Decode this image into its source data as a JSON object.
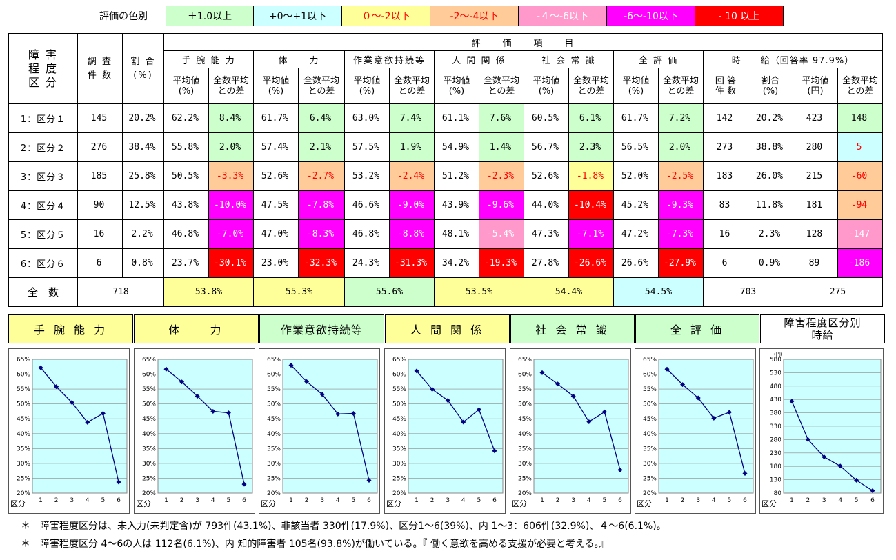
{
  "legend": {
    "title": "評価の色別",
    "items": [
      {
        "label": "＋1.0以上",
        "bg": "#ccffcc",
        "fg": "#000000"
      },
      {
        "label": "+0〜+1以下",
        "bg": "#ccffff",
        "fg": "#000000"
      },
      {
        "label": "０〜-2以下",
        "bg": "#ffff99",
        "fg": "#ff0000"
      },
      {
        "label": "-2〜-4以下",
        "bg": "#ffcc99",
        "fg": "#ff0000"
      },
      {
        "label": "-４〜-6以下",
        "bg": "#ff99cc",
        "fg": "#ffffff"
      },
      {
        "label": "-6〜-10以下",
        "bg": "#ff00ff",
        "fg": "#ffffff"
      },
      {
        "label": "- 10 以上",
        "bg": "#ff0000",
        "fg": "#ffffff"
      }
    ]
  },
  "colors": {
    "green": "#ccffcc",
    "cyan": "#ccffff",
    "yellow": "#ffff99",
    "orange": "#ffcc99",
    "pink": "#ff99cc",
    "magenta": "#ff00ff",
    "red": "#ff0000",
    "panel_bg": "#ccffff",
    "line": "#000080"
  },
  "table": {
    "corner": "障 害\n程 度\n区 分",
    "survey_count": "調 査\n件 数",
    "ratio": "割 合\n(%)",
    "eval_header": "評　　価　　項　　目",
    "items": [
      "手 腕 能 力",
      "体　　力",
      "作業意欲持続等",
      "人 間 関 係",
      "社 会 常 識",
      "全 評 価"
    ],
    "wage_header": "時　　給（回答率 97.9%）",
    "sub_avg": "平均値\n(%)",
    "sub_diff": "全数平均\nとの差",
    "wage_subs": [
      "回 答\n件 数",
      "割合\n(%)",
      "平均値\n(円)",
      "全数平均\nとの差"
    ],
    "rows": [
      {
        "label": "1：区分１",
        "count": "145",
        "ratio": "20.2%",
        "cells": [
          [
            "62.2%",
            "8.4%",
            "green"
          ],
          [
            "61.7%",
            "6.4%",
            "green"
          ],
          [
            "63.0%",
            "7.4%",
            "green"
          ],
          [
            "61.1%",
            "7.6%",
            "green"
          ],
          [
            "60.5%",
            "6.1%",
            "green"
          ],
          [
            "61.7%",
            "7.2%",
            "green"
          ]
        ],
        "wage": [
          "142",
          "20.2%",
          "423",
          "148",
          "green"
        ]
      },
      {
        "label": "2：区分２",
        "count": "276",
        "ratio": "38.4%",
        "cells": [
          [
            "55.8%",
            "2.0%",
            "green"
          ],
          [
            "57.4%",
            "2.1%",
            "green"
          ],
          [
            "57.5%",
            "1.9%",
            "green"
          ],
          [
            "54.9%",
            "1.4%",
            "green"
          ],
          [
            "56.7%",
            "2.3%",
            "green"
          ],
          [
            "56.5%",
            "2.0%",
            "green"
          ]
        ],
        "wage": [
          "273",
          "38.8%",
          "280",
          "5",
          "cyan"
        ]
      },
      {
        "label": "3：区分３",
        "count": "185",
        "ratio": "25.8%",
        "cells": [
          [
            "50.5%",
            "-3.3%",
            "orange"
          ],
          [
            "52.6%",
            "-2.7%",
            "orange"
          ],
          [
            "53.2%",
            "-2.4%",
            "orange"
          ],
          [
            "51.2%",
            "-2.3%",
            "orange"
          ],
          [
            "52.6%",
            "-1.8%",
            "yellow"
          ],
          [
            "52.0%",
            "-2.5%",
            "orange"
          ]
        ],
        "wage": [
          "183",
          "26.0%",
          "215",
          "-60",
          "orange"
        ]
      },
      {
        "label": "4：区分４",
        "count": "90",
        "ratio": "12.5%",
        "cells": [
          [
            "43.8%",
            "-10.0%",
            "magenta"
          ],
          [
            "47.5%",
            "-7.8%",
            "magenta"
          ],
          [
            "46.6%",
            "-9.0%",
            "magenta"
          ],
          [
            "43.9%",
            "-9.6%",
            "magenta"
          ],
          [
            "44.0%",
            "-10.4%",
            "red"
          ],
          [
            "45.2%",
            "-9.3%",
            "magenta"
          ]
        ],
        "wage": [
          "83",
          "11.8%",
          "181",
          "-94",
          "orange"
        ]
      },
      {
        "label": "5：区分５",
        "count": "16",
        "ratio": "2.2%",
        "cells": [
          [
            "46.8%",
            "-7.0%",
            "magenta"
          ],
          [
            "47.0%",
            "-8.3%",
            "magenta"
          ],
          [
            "46.8%",
            "-8.8%",
            "magenta"
          ],
          [
            "48.1%",
            "-5.4%",
            "pink"
          ],
          [
            "47.3%",
            "-7.1%",
            "magenta"
          ],
          [
            "47.2%",
            "-7.3%",
            "magenta"
          ]
        ],
        "wage": [
          "16",
          "2.3%",
          "128",
          "-147",
          "pink"
        ]
      },
      {
        "label": "6：区分６",
        "count": "6",
        "ratio": "0.8%",
        "cells": [
          [
            "23.7%",
            "-30.1%",
            "red"
          ],
          [
            "23.0%",
            "-32.3%",
            "red"
          ],
          [
            "24.3%",
            "-31.3%",
            "red"
          ],
          [
            "34.2%",
            "-19.3%",
            "red"
          ],
          [
            "27.8%",
            "-26.6%",
            "red"
          ],
          [
            "26.6%",
            "-27.9%",
            "red"
          ]
        ],
        "wage": [
          "6",
          "0.9%",
          "89",
          "-186",
          "magenta"
        ]
      }
    ],
    "total": {
      "label": "全　数",
      "count": "718",
      "avgs": [
        [
          "53.8%",
          "yellow"
        ],
        [
          "55.3%",
          "yellow"
        ],
        [
          "55.6%",
          "green"
        ],
        [
          "53.5%",
          "yellow"
        ],
        [
          "54.4%",
          "yellow"
        ],
        [
          "54.5%",
          "cyan"
        ]
      ],
      "wage_count": "703",
      "wage_avg": "275"
    }
  },
  "chart_headers": [
    {
      "label": "手 腕 能 力",
      "bg": "#ffff99"
    },
    {
      "label": "体　　力",
      "bg": "#ffff99"
    },
    {
      "label": "作業意欲持続等",
      "bg": "#ccffcc"
    },
    {
      "label": "人 間 関 係",
      "bg": "#ffff99"
    },
    {
      "label": "社 会 常 識",
      "bg": "#ccffcc"
    },
    {
      "label": "全 評 価",
      "bg": "#ccffcc"
    },
    {
      "label": "障害程度区分別\n時給",
      "bg": "#ffffff"
    }
  ],
  "chart_data": [
    {
      "type": "line",
      "x": [
        1,
        2,
        3,
        4,
        5,
        6
      ],
      "x_ticks": [
        "1",
        "2",
        "3",
        "4",
        "5",
        "6"
      ],
      "x_prefix": "区分",
      "ylim": [
        20,
        65
      ],
      "y_ticks": [
        "20%",
        "25%",
        "30%",
        "35%",
        "40%",
        "45%",
        "50%",
        "55%",
        "60%",
        "65%"
      ],
      "y_tick_values": [
        20,
        25,
        30,
        35,
        40,
        45,
        50,
        55,
        60,
        65
      ],
      "values": [
        62.2,
        55.8,
        50.5,
        43.8,
        46.8,
        23.7
      ],
      "grid": true
    },
    {
      "type": "line",
      "x": [
        1,
        2,
        3,
        4,
        5,
        6
      ],
      "x_ticks": [
        "1",
        "2",
        "3",
        "4",
        "5",
        "6"
      ],
      "x_prefix": "区分",
      "ylim": [
        20,
        65
      ],
      "y_ticks": [
        "20%",
        "25%",
        "30%",
        "35%",
        "40%",
        "45%",
        "50%",
        "55%",
        "60%",
        "65%"
      ],
      "y_tick_values": [
        20,
        25,
        30,
        35,
        40,
        45,
        50,
        55,
        60,
        65
      ],
      "values": [
        61.7,
        57.4,
        52.6,
        47.5,
        47.0,
        23.0
      ],
      "grid": true
    },
    {
      "type": "line",
      "x": [
        1,
        2,
        3,
        4,
        5,
        6
      ],
      "x_ticks": [
        "1",
        "2",
        "3",
        "4",
        "5",
        "6"
      ],
      "x_prefix": "区分",
      "ylim": [
        20,
        65
      ],
      "y_ticks": [
        "20%",
        "25%",
        "30%",
        "35%",
        "40%",
        "45%",
        "50%",
        "55%",
        "60%",
        "65%"
      ],
      "y_tick_values": [
        20,
        25,
        30,
        35,
        40,
        45,
        50,
        55,
        60,
        65
      ],
      "values": [
        63.0,
        57.5,
        53.2,
        46.6,
        46.8,
        24.3
      ],
      "grid": true
    },
    {
      "type": "line",
      "x": [
        1,
        2,
        3,
        4,
        5,
        6
      ],
      "x_ticks": [
        "1",
        "2",
        "3",
        "4",
        "5",
        "6"
      ],
      "x_prefix": "区分",
      "ylim": [
        20,
        65
      ],
      "y_ticks": [
        "20%",
        "25%",
        "30%",
        "35%",
        "40%",
        "45%",
        "50%",
        "55%",
        "60%",
        "65%"
      ],
      "y_tick_values": [
        20,
        25,
        30,
        35,
        40,
        45,
        50,
        55,
        60,
        65
      ],
      "values": [
        61.1,
        54.9,
        51.2,
        43.9,
        48.1,
        34.2
      ],
      "grid": true
    },
    {
      "type": "line",
      "x": [
        1,
        2,
        3,
        4,
        5,
        6
      ],
      "x_ticks": [
        "1",
        "2",
        "3",
        "4",
        "5",
        "6"
      ],
      "x_prefix": "区分",
      "ylim": [
        20,
        65
      ],
      "y_ticks": [
        "20%",
        "25%",
        "30%",
        "35%",
        "40%",
        "45%",
        "50%",
        "55%",
        "60%",
        "65%"
      ],
      "y_tick_values": [
        20,
        25,
        30,
        35,
        40,
        45,
        50,
        55,
        60,
        65
      ],
      "values": [
        60.5,
        56.7,
        52.6,
        44.0,
        47.3,
        27.8
      ],
      "grid": true
    },
    {
      "type": "line",
      "x": [
        1,
        2,
        3,
        4,
        5,
        6
      ],
      "x_ticks": [
        "1",
        "2",
        "3",
        "4",
        "5",
        "6"
      ],
      "x_prefix": "区分",
      "ylim": [
        20,
        65
      ],
      "y_ticks": [
        "20%",
        "25%",
        "30%",
        "35%",
        "40%",
        "45%",
        "50%",
        "55%",
        "60%",
        "65%"
      ],
      "y_tick_values": [
        20,
        25,
        30,
        35,
        40,
        45,
        50,
        55,
        60,
        65
      ],
      "values": [
        61.7,
        56.5,
        52.0,
        45.2,
        47.2,
        26.6
      ],
      "grid": true
    },
    {
      "type": "line",
      "x": [
        1,
        2,
        3,
        4,
        5,
        6
      ],
      "x_ticks": [
        "1",
        "2",
        "3",
        "4",
        "5",
        "6"
      ],
      "x_prefix": "区分",
      "unit": "(円)",
      "ylim": [
        80,
        580
      ],
      "y_ticks": [
        "80",
        "130",
        "180",
        "230",
        "280",
        "330",
        "380",
        "430",
        "480",
        "530",
        "580"
      ],
      "y_tick_values": [
        80,
        130,
        180,
        230,
        280,
        330,
        380,
        430,
        480,
        530,
        580
      ],
      "values": [
        423,
        280,
        215,
        181,
        128,
        89
      ],
      "grid": true
    }
  ],
  "notes": [
    "＊　障害程度区分は、未入力(未判定含)が 793件(43.1%)、非該当者 330件(17.9%)、区分1〜6(39%)、内 1〜3：606件(32.9%)、４〜6(6.1%)。",
    "＊　障害程度区分 4〜6の人は 112名(6.1%)、内 知的障害者 105名(93.8%)が働いている。『 働く意欲を高める支援が必要と考える。』"
  ]
}
